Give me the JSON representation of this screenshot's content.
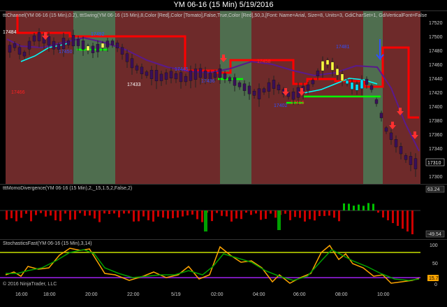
{
  "window": {
    "title": "YM 06-16 (15 Min)  5/19/2016"
  },
  "price_pane": {
    "indicator_label": "tttChannel(YM 06-16 (15 Min),0.2), tttSwing(YM 06-16 (15 Min),8,Color [Red],Color [Tomato],False,True,Color [Red],50,3,[Font: Name=Arial, Size=8, Units=3, GdiCharSet=1, GdiVerticalFont=False",
    "y_ticks": [
      "17520",
      "17500",
      "17480",
      "17460",
      "17440",
      "17420",
      "17400",
      "17380",
      "17360",
      "17340",
      "17320",
      "17300"
    ],
    "last_price": "17310",
    "swing_labels": [
      {
        "text": "17484",
        "color": "#ffffff"
      },
      {
        "text": "17466",
        "color": "#ff2020"
      },
      {
        "text": "17450",
        "color": "#3050ff"
      },
      {
        "text": "17492",
        "color": "#3050ff"
      },
      {
        "text": "17433",
        "color": "#ffffff"
      },
      {
        "text": "17445",
        "color": "#3050ff"
      },
      {
        "text": "17436",
        "color": "#3050ff"
      },
      {
        "text": "17458",
        "color": "#ff2020"
      },
      {
        "text": "17402",
        "color": "#3050ff"
      },
      {
        "text": "17416",
        "color": "#ff2020"
      },
      {
        "text": "17481",
        "color": "#3050ff"
      }
    ]
  },
  "momo_pane": {
    "label": "tttMomoDivergence(YM 06-16 (15 Min),2,_15,1.5,2,False,2)",
    "right_top": "63.24",
    "right_bottom": "-49.54"
  },
  "stoch_pane": {
    "label": "StochasticsFast(YM 06-16 (15 Min),3,14)",
    "y_ticks": [
      "100",
      "50",
      "0"
    ],
    "last_value": "15.7",
    "upper_level": 80,
    "lower_level": 20
  },
  "x_axis": {
    "labels": [
      "16:00",
      "18:00",
      "20:00",
      "22:00",
      "5/19",
      "02:00",
      "04:00",
      "06:00",
      "08:00",
      "10:00"
    ]
  },
  "copyright": "© 2016 NinjaTrader, LLC",
  "colors": {
    "red_zone": "#6e2a2a",
    "green_zone": "#4f6e4f",
    "channel_line": "#ff0000",
    "swing_line": "#5a1a8c",
    "fast_line": "#00ffff",
    "stoch_k": "#ffa500",
    "stoch_d": "#00a000"
  }
}
